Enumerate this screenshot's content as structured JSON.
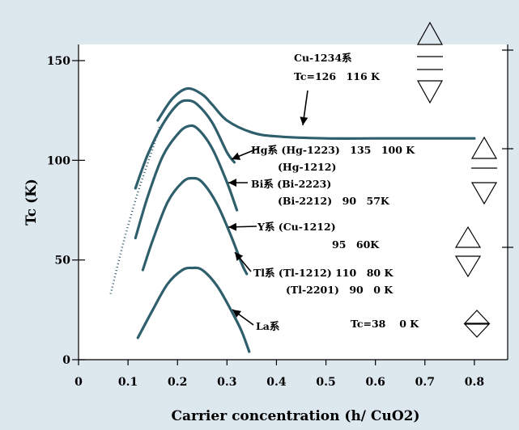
{
  "colors": {
    "background": "#dde7ee",
    "plot_background": "#ffffff",
    "curve": "#2f5f6c",
    "axis": "#000000"
  },
  "chart_data": {
    "type": "line",
    "title": "",
    "xlabel": "Carrier concentration (h/ CuO2)",
    "ylabel": "Tc (K)",
    "xlim": [
      0,
      0.9
    ],
    "ylim": [
      0,
      150
    ],
    "grid": false,
    "x_ticks": [
      "0",
      "0.1",
      "0.2",
      "0.3",
      "0.4",
      "0.5",
      "0.6",
      "0.7",
      "0.8"
    ],
    "y_ticks": [
      "0",
      "50",
      "100",
      "150"
    ],
    "series": [
      {
        "style": "solid",
        "points": [
          [
            0.16,
            120
          ],
          [
            0.19,
            131
          ],
          [
            0.22,
            136
          ],
          [
            0.25,
            133
          ],
          [
            0.27,
            128
          ],
          [
            0.3,
            120
          ],
          [
            0.35,
            114
          ],
          [
            0.4,
            112
          ],
          [
            0.5,
            111
          ],
          [
            0.6,
            111
          ],
          [
            0.7,
            111
          ],
          [
            0.8,
            111
          ]
        ]
      },
      {
        "style": "solid",
        "points": [
          [
            0.115,
            86
          ],
          [
            0.14,
            103
          ],
          [
            0.17,
            118
          ],
          [
            0.2,
            128
          ],
          [
            0.22,
            130
          ],
          [
            0.24,
            128
          ],
          [
            0.27,
            119
          ],
          [
            0.3,
            104
          ],
          [
            0.315,
            99
          ]
        ]
      },
      {
        "style": "solid",
        "points": [
          [
            0.115,
            61
          ],
          [
            0.14,
            82
          ],
          [
            0.17,
            102
          ],
          [
            0.2,
            113
          ],
          [
            0.22,
            117
          ],
          [
            0.24,
            116
          ],
          [
            0.27,
            106
          ],
          [
            0.3,
            89
          ],
          [
            0.32,
            75
          ]
        ]
      },
      {
        "style": "solid",
        "points": [
          [
            0.13,
            45
          ],
          [
            0.15,
            60
          ],
          [
            0.18,
            79
          ],
          [
            0.21,
            89
          ],
          [
            0.23,
            91
          ],
          [
            0.25,
            89
          ],
          [
            0.28,
            78
          ],
          [
            0.31,
            61
          ],
          [
            0.33,
            48
          ],
          [
            0.34,
            43
          ]
        ]
      },
      {
        "style": "solid",
        "points": [
          [
            0.12,
            11
          ],
          [
            0.15,
            25
          ],
          [
            0.18,
            38
          ],
          [
            0.21,
            45
          ],
          [
            0.23,
            46
          ],
          [
            0.25,
            45
          ],
          [
            0.28,
            37
          ],
          [
            0.31,
            24
          ],
          [
            0.33,
            14
          ],
          [
            0.345,
            4
          ]
        ]
      },
      {
        "style": "dotted",
        "points": [
          [
            0.065,
            33
          ],
          [
            0.09,
            58
          ],
          [
            0.12,
            84
          ],
          [
            0.15,
            106
          ],
          [
            0.165,
            118
          ]
        ]
      }
    ],
    "annotations": [
      {
        "lines": [
          "Cu-1234系",
          "Tc=126　116 K"
        ]
      },
      {
        "lines": [
          "Hg系 (Hg-1223)　135　100 K",
          "(Hg-1212)"
        ]
      },
      {
        "lines": [
          "Bi系 (Bi-2223)",
          "(Bi-2212)　90　57K"
        ]
      },
      {
        "lines": [
          "Y系 (Cu-1212)",
          "95　60K"
        ]
      },
      {
        "lines": [
          "Tl系 (Tl-1212) 110　80 K",
          "(Tl-2201)　90　0 K"
        ]
      },
      {
        "lines": [
          "La系"
        ]
      },
      {
        "lines": [
          "Tc=38　 0 K"
        ]
      }
    ]
  }
}
